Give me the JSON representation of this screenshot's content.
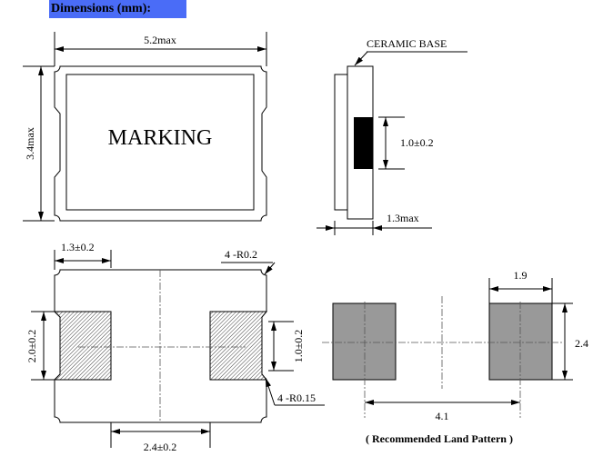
{
  "header": {
    "title": "Dimensions (mm):",
    "background": "#4a6cf7"
  },
  "top_view": {
    "marking": "MARKING",
    "width_label": "5.2max",
    "height_label": "3.4max"
  },
  "side_view": {
    "base_label": "CERAMIC BASE",
    "electrode_label": "1.0±0.2",
    "thickness_label": "1.3max"
  },
  "bottom_view": {
    "pad_width_label": "1.3±0.2",
    "corner_radius_label": "4 -R0.2",
    "height_label": "2.0±0.2",
    "pad_notch_label": "1.0±0.2",
    "inner_radius_label": "4 -R0.15",
    "gap_label": "2.4±0.2"
  },
  "land_pattern": {
    "pad_width_label": "1.9",
    "pad_height_label": "2.4",
    "pitch_label": "4.1",
    "caption": "( Recommended Land Pattern )",
    "pad_color": "#999999"
  }
}
